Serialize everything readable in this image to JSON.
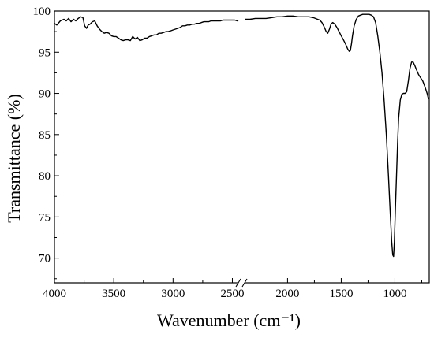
{
  "chart_data": {
    "type": "line",
    "title": "",
    "xlabel": "Wavenumber (cm⁻¹)",
    "ylabel": "Transmittance (%)",
    "x_reversed": true,
    "axis_break": [
      2400,
      2450
    ],
    "xlim": [
      4000,
      680
    ],
    "ylim": [
      67,
      100
    ],
    "x_ticks": [
      4000,
      3500,
      3000,
      2500,
      2000,
      1500,
      1000
    ],
    "y_ticks": [
      70,
      75,
      80,
      85,
      90,
      95,
      100
    ],
    "series": [
      {
        "segments": [
          [
            [
              4000,
              98.5
            ],
            [
              3980,
              98.3
            ],
            [
              3950,
              98.8
            ],
            [
              3920,
              99.0
            ],
            [
              3900,
              98.8
            ],
            [
              3880,
              99.1
            ],
            [
              3860,
              98.7
            ],
            [
              3840,
              99.0
            ],
            [
              3820,
              98.8
            ],
            [
              3800,
              99.1
            ],
            [
              3780,
              99.3
            ],
            [
              3760,
              99.2
            ],
            [
              3745,
              98.2
            ],
            [
              3730,
              97.9
            ],
            [
              3715,
              98.3
            ],
            [
              3700,
              98.4
            ],
            [
              3680,
              98.7
            ],
            [
              3660,
              98.8
            ],
            [
              3640,
              98.2
            ],
            [
              3620,
              97.8
            ],
            [
              3600,
              97.5
            ],
            [
              3580,
              97.3
            ],
            [
              3560,
              97.4
            ],
            [
              3540,
              97.3
            ],
            [
              3520,
              97.0
            ],
            [
              3500,
              96.9
            ],
            [
              3480,
              96.9
            ],
            [
              3460,
              96.7
            ],
            [
              3440,
              96.5
            ],
            [
              3420,
              96.4
            ],
            [
              3400,
              96.5
            ],
            [
              3380,
              96.5
            ],
            [
              3360,
              96.4
            ],
            [
              3340,
              96.9
            ],
            [
              3320,
              96.6
            ],
            [
              3300,
              96.8
            ],
            [
              3280,
              96.4
            ],
            [
              3260,
              96.5
            ],
            [
              3240,
              96.7
            ],
            [
              3220,
              96.7
            ],
            [
              3200,
              96.9
            ],
            [
              3180,
              97.0
            ],
            [
              3160,
              97.1
            ],
            [
              3140,
              97.1
            ],
            [
              3120,
              97.3
            ],
            [
              3100,
              97.3
            ],
            [
              3080,
              97.4
            ],
            [
              3060,
              97.5
            ],
            [
              3040,
              97.5
            ],
            [
              3020,
              97.6
            ],
            [
              3000,
              97.7
            ],
            [
              2980,
              97.8
            ],
            [
              2960,
              97.9
            ],
            [
              2940,
              98.0
            ],
            [
              2920,
              98.2
            ],
            [
              2900,
              98.2
            ],
            [
              2880,
              98.3
            ],
            [
              2860,
              98.3
            ],
            [
              2840,
              98.4
            ],
            [
              2820,
              98.4
            ],
            [
              2800,
              98.5
            ],
            [
              2780,
              98.5
            ],
            [
              2760,
              98.6
            ],
            [
              2740,
              98.7
            ],
            [
              2720,
              98.7
            ],
            [
              2700,
              98.7
            ],
            [
              2680,
              98.8
            ],
            [
              2660,
              98.8
            ],
            [
              2640,
              98.8
            ],
            [
              2620,
              98.8
            ],
            [
              2600,
              98.8
            ],
            [
              2580,
              98.9
            ],
            [
              2560,
              98.9
            ],
            [
              2540,
              98.9
            ],
            [
              2520,
              98.9
            ],
            [
              2500,
              98.9
            ],
            [
              2480,
              98.9
            ],
            [
              2460,
              98.8
            ],
            [
              2450,
              98.9
            ]
          ],
          [
            [
              2400,
              99.0
            ],
            [
              2350,
              99.0
            ],
            [
              2300,
              99.1
            ],
            [
              2250,
              99.1
            ],
            [
              2200,
              99.1
            ],
            [
              2150,
              99.2
            ],
            [
              2100,
              99.3
            ],
            [
              2050,
              99.3
            ],
            [
              2000,
              99.4
            ],
            [
              1950,
              99.4
            ],
            [
              1900,
              99.3
            ],
            [
              1850,
              99.3
            ],
            [
              1800,
              99.3
            ],
            [
              1760,
              99.2
            ],
            [
              1720,
              99.0
            ],
            [
              1700,
              98.9
            ],
            [
              1680,
              98.6
            ],
            [
              1660,
              98.1
            ],
            [
              1640,
              97.5
            ],
            [
              1625,
              97.3
            ],
            [
              1610,
              97.8
            ],
            [
              1595,
              98.4
            ],
            [
              1580,
              98.6
            ],
            [
              1560,
              98.4
            ],
            [
              1540,
              98.0
            ],
            [
              1520,
              97.5
            ],
            [
              1500,
              97.0
            ],
            [
              1480,
              96.5
            ],
            [
              1460,
              96.0
            ],
            [
              1440,
              95.4
            ],
            [
              1425,
              95.1
            ],
            [
              1415,
              95.2
            ],
            [
              1405,
              96.0
            ],
            [
              1395,
              97.0
            ],
            [
              1380,
              98.2
            ],
            [
              1360,
              99.0
            ],
            [
              1340,
              99.4
            ],
            [
              1320,
              99.5
            ],
            [
              1300,
              99.6
            ],
            [
              1280,
              99.6
            ],
            [
              1260,
              99.6
            ],
            [
              1240,
              99.6
            ],
            [
              1220,
              99.5
            ],
            [
              1200,
              99.3
            ],
            [
              1180,
              98.6
            ],
            [
              1160,
              97.0
            ],
            [
              1140,
              95.0
            ],
            [
              1120,
              92.5
            ],
            [
              1100,
              89.0
            ],
            [
              1080,
              85.0
            ],
            [
              1060,
              80.0
            ],
            [
              1045,
              76.0
            ],
            [
              1030,
              72.0
            ],
            [
              1020,
              70.4
            ],
            [
              1012,
              70.2
            ],
            [
              1005,
              72.0
            ],
            [
              995,
              76.0
            ],
            [
              985,
              80.0
            ],
            [
              975,
              84.0
            ],
            [
              965,
              87.0
            ],
            [
              950,
              89.2
            ],
            [
              935,
              89.9
            ],
            [
              920,
              90.0
            ],
            [
              905,
              90.0
            ],
            [
              890,
              90.2
            ],
            [
              875,
              91.5
            ],
            [
              860,
              93.0
            ],
            [
              845,
              93.8
            ],
            [
              830,
              93.8
            ],
            [
              815,
              93.4
            ],
            [
              800,
              92.9
            ],
            [
              780,
              92.3
            ],
            [
              760,
              91.9
            ],
            [
              740,
              91.5
            ],
            [
              720,
              90.8
            ],
            [
              700,
              90.0
            ],
            [
              690,
              89.5
            ],
            [
              680,
              89.3
            ]
          ]
        ]
      }
    ]
  }
}
